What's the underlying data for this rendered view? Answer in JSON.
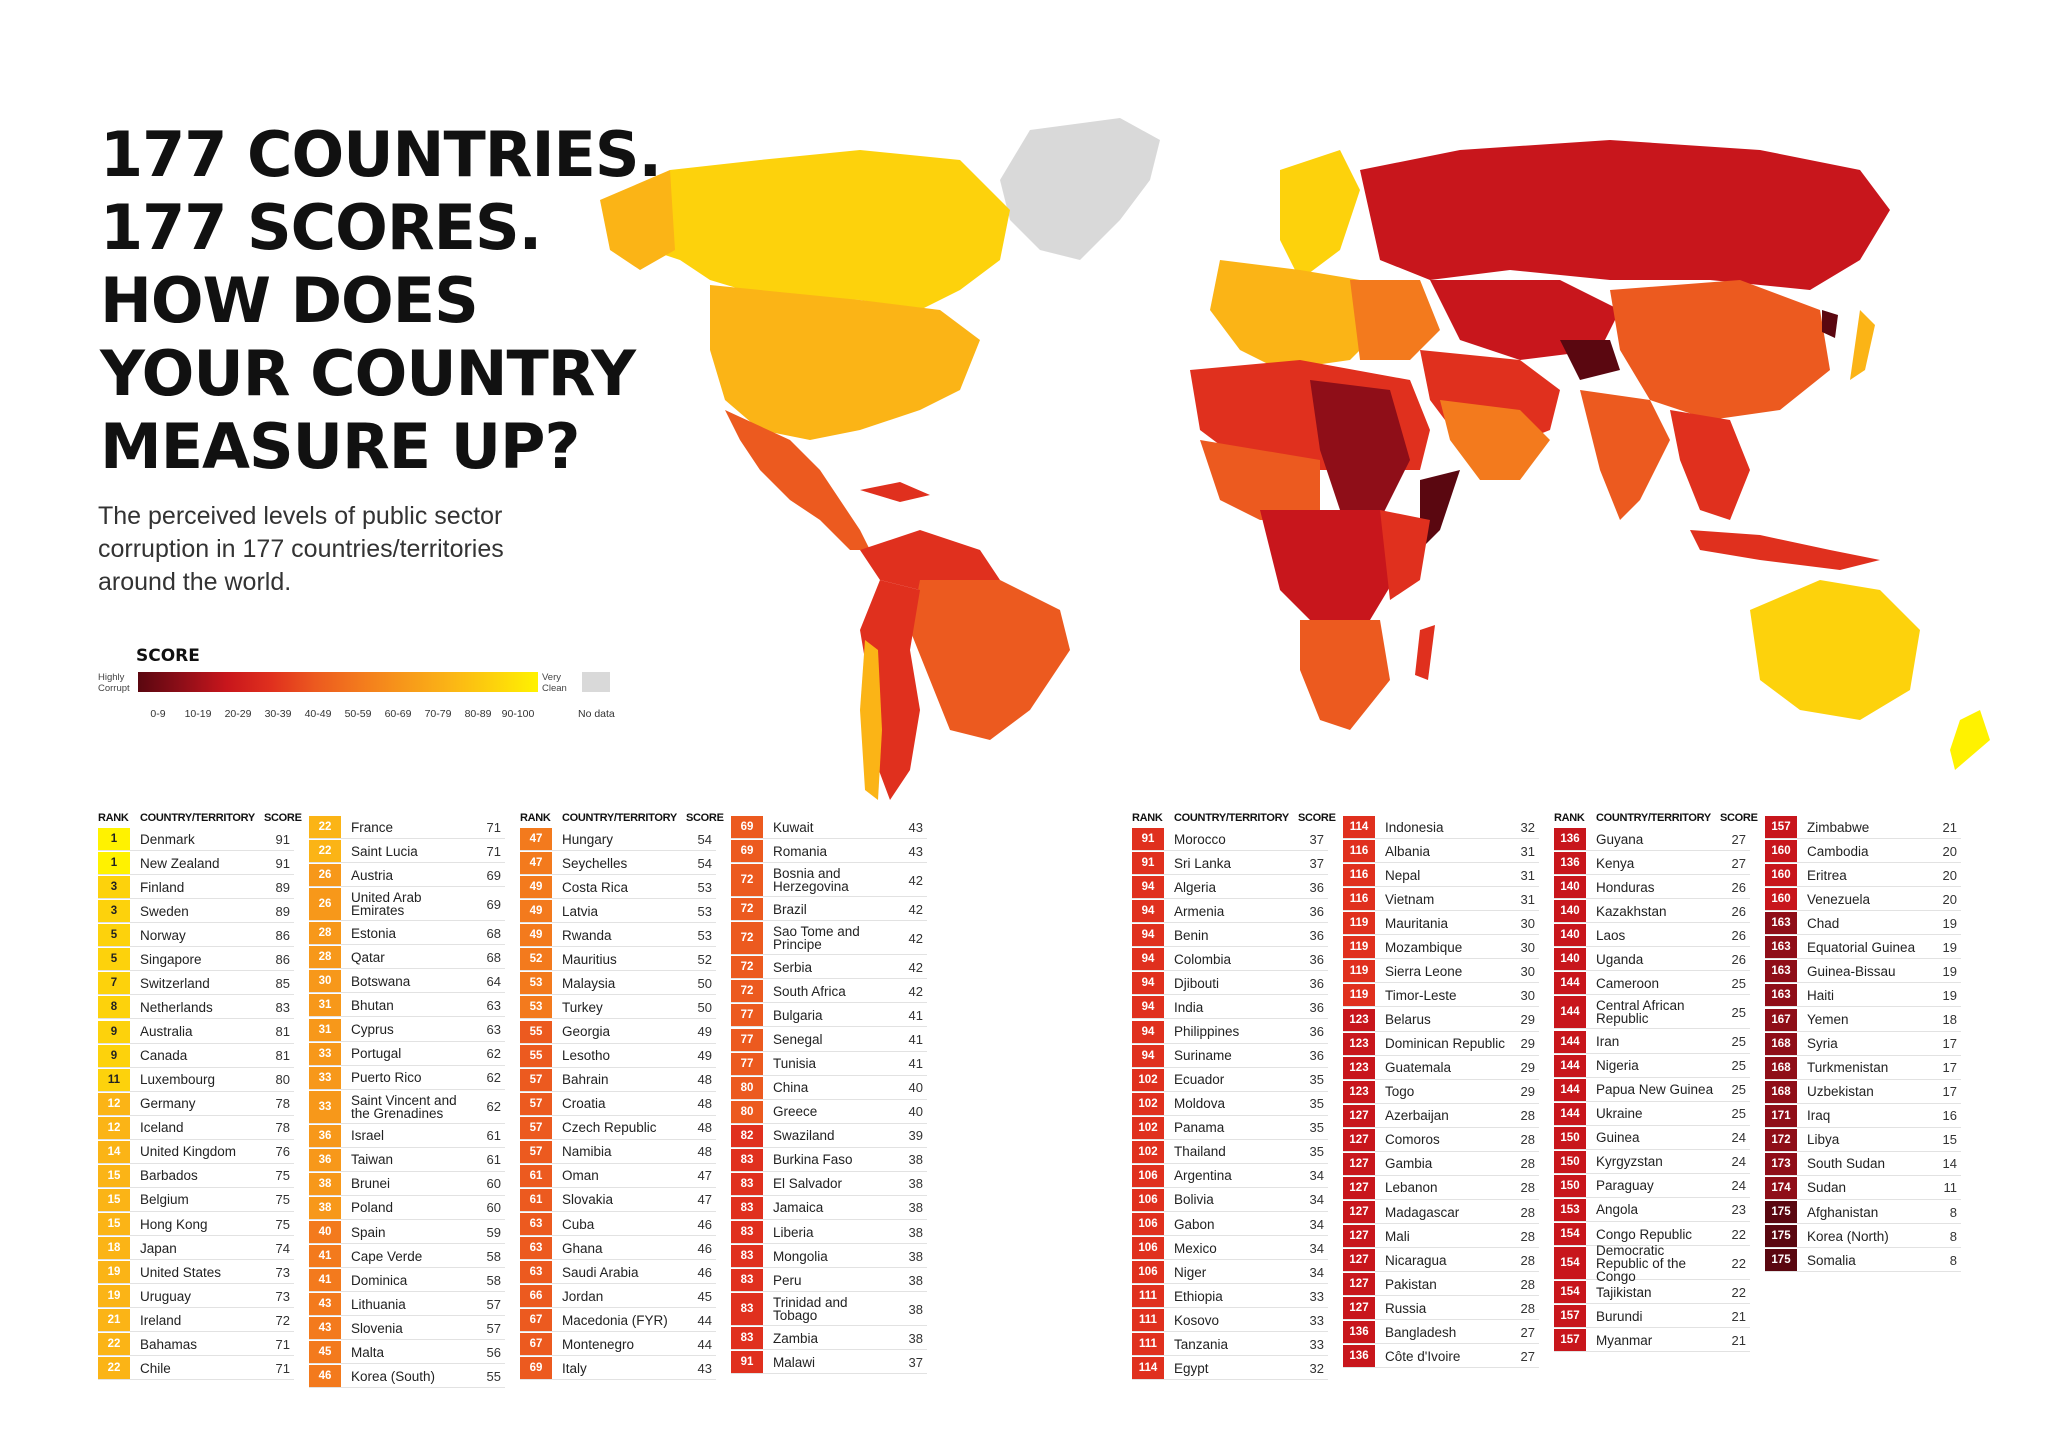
{
  "headline": [
    "177 COUNTRIES.",
    "177 SCORES.",
    "HOW DOES",
    "YOUR COUNTRY",
    "MEASURE UP?"
  ],
  "subtitle": "The perceived levels of public sector corruption in 177 countries/territories around the world.",
  "legend": {
    "title": "SCORE",
    "low_label": "Highly Corrupt",
    "high_label": "Very Clean",
    "ranges": [
      "0-9",
      "10-19",
      "20-29",
      "30-39",
      "40-49",
      "50-59",
      "60-69",
      "70-79",
      "80-89",
      "90-100"
    ],
    "no_data": "No data",
    "colors": [
      "#5a0710",
      "#8f0e18",
      "#c8161c",
      "#e0301e",
      "#ec5a1f",
      "#f37a1d",
      "#f7981a",
      "#fbb416",
      "#fdd20c",
      "#fff200"
    ],
    "no_data_color": "#d9d9d9"
  },
  "table_header": {
    "rank": "RANK",
    "country": "COUNTRY/TERRITORY",
    "score": "SCORE"
  },
  "columns": [
    [
      {
        "rank": "1",
        "country": "Denmark",
        "score": "91"
      },
      {
        "rank": "1",
        "country": "New Zealand",
        "score": "91"
      },
      {
        "rank": "3",
        "country": "Finland",
        "score": "89"
      },
      {
        "rank": "3",
        "country": "Sweden",
        "score": "89"
      },
      {
        "rank": "5",
        "country": "Norway",
        "score": "86"
      },
      {
        "rank": "5",
        "country": "Singapore",
        "score": "86"
      },
      {
        "rank": "7",
        "country": "Switzerland",
        "score": "85"
      },
      {
        "rank": "8",
        "country": "Netherlands",
        "score": "83"
      },
      {
        "rank": "9",
        "country": "Australia",
        "score": "81"
      },
      {
        "rank": "9",
        "country": "Canada",
        "score": "81"
      },
      {
        "rank": "11",
        "country": "Luxembourg",
        "score": "80"
      },
      {
        "rank": "12",
        "country": "Germany",
        "score": "78"
      },
      {
        "rank": "12",
        "country": "Iceland",
        "score": "78"
      },
      {
        "rank": "14",
        "country": "United Kingdom",
        "score": "76"
      },
      {
        "rank": "15",
        "country": "Barbados",
        "score": "75"
      },
      {
        "rank": "15",
        "country": "Belgium",
        "score": "75"
      },
      {
        "rank": "15",
        "country": "Hong Kong",
        "score": "75"
      },
      {
        "rank": "18",
        "country": "Japan",
        "score": "74"
      },
      {
        "rank": "19",
        "country": "United States",
        "score": "73"
      },
      {
        "rank": "19",
        "country": "Uruguay",
        "score": "73"
      },
      {
        "rank": "21",
        "country": "Ireland",
        "score": "72"
      },
      {
        "rank": "22",
        "country": "Bahamas",
        "score": "71"
      },
      {
        "rank": "22",
        "country": "Chile",
        "score": "71"
      }
    ],
    [
      {
        "rank": "22",
        "country": "France",
        "score": "71"
      },
      {
        "rank": "22",
        "country": "Saint Lucia",
        "score": "71"
      },
      {
        "rank": "26",
        "country": "Austria",
        "score": "69"
      },
      {
        "rank": "26",
        "country": "United Arab Emirates",
        "score": "69"
      },
      {
        "rank": "28",
        "country": "Estonia",
        "score": "68"
      },
      {
        "rank": "28",
        "country": "Qatar",
        "score": "68"
      },
      {
        "rank": "30",
        "country": "Botswana",
        "score": "64"
      },
      {
        "rank": "31",
        "country": "Bhutan",
        "score": "63"
      },
      {
        "rank": "31",
        "country": "Cyprus",
        "score": "63"
      },
      {
        "rank": "33",
        "country": "Portugal",
        "score": "62"
      },
      {
        "rank": "33",
        "country": "Puerto Rico",
        "score": "62"
      },
      {
        "rank": "33",
        "country": "Saint Vincent and the Grenadines",
        "score": "62"
      },
      {
        "rank": "36",
        "country": "Israel",
        "score": "61"
      },
      {
        "rank": "36",
        "country": "Taiwan",
        "score": "61"
      },
      {
        "rank": "38",
        "country": "Brunei",
        "score": "60"
      },
      {
        "rank": "38",
        "country": "Poland",
        "score": "60"
      },
      {
        "rank": "40",
        "country": "Spain",
        "score": "59"
      },
      {
        "rank": "41",
        "country": "Cape Verde",
        "score": "58"
      },
      {
        "rank": "41",
        "country": "Dominica",
        "score": "58"
      },
      {
        "rank": "43",
        "country": "Lithuania",
        "score": "57"
      },
      {
        "rank": "43",
        "country": "Slovenia",
        "score": "57"
      },
      {
        "rank": "45",
        "country": "Malta",
        "score": "56"
      },
      {
        "rank": "46",
        "country": "Korea (South)",
        "score": "55"
      }
    ],
    [
      {
        "rank": "47",
        "country": "Hungary",
        "score": "54"
      },
      {
        "rank": "47",
        "country": "Seychelles",
        "score": "54"
      },
      {
        "rank": "49",
        "country": "Costa Rica",
        "score": "53"
      },
      {
        "rank": "49",
        "country": "Latvia",
        "score": "53"
      },
      {
        "rank": "49",
        "country": "Rwanda",
        "score": "53"
      },
      {
        "rank": "52",
        "country": "Mauritius",
        "score": "52"
      },
      {
        "rank": "53",
        "country": "Malaysia",
        "score": "50"
      },
      {
        "rank": "53",
        "country": "Turkey",
        "score": "50"
      },
      {
        "rank": "55",
        "country": "Georgia",
        "score": "49"
      },
      {
        "rank": "55",
        "country": "Lesotho",
        "score": "49"
      },
      {
        "rank": "57",
        "country": "Bahrain",
        "score": "48"
      },
      {
        "rank": "57",
        "country": "Croatia",
        "score": "48"
      },
      {
        "rank": "57",
        "country": "Czech Republic",
        "score": "48"
      },
      {
        "rank": "57",
        "country": "Namibia",
        "score": "48"
      },
      {
        "rank": "61",
        "country": "Oman",
        "score": "47"
      },
      {
        "rank": "61",
        "country": "Slovakia",
        "score": "47"
      },
      {
        "rank": "63",
        "country": "Cuba",
        "score": "46"
      },
      {
        "rank": "63",
        "country": "Ghana",
        "score": "46"
      },
      {
        "rank": "63",
        "country": "Saudi Arabia",
        "score": "46"
      },
      {
        "rank": "66",
        "country": "Jordan",
        "score": "45"
      },
      {
        "rank": "67",
        "country": "Macedonia (FYR)",
        "score": "44"
      },
      {
        "rank": "67",
        "country": "Montenegro",
        "score": "44"
      },
      {
        "rank": "69",
        "country": "Italy",
        "score": "43"
      }
    ],
    [
      {
        "rank": "69",
        "country": "Kuwait",
        "score": "43"
      },
      {
        "rank": "69",
        "country": "Romania",
        "score": "43"
      },
      {
        "rank": "72",
        "country": "Bosnia and Herzegovina",
        "score": "42"
      },
      {
        "rank": "72",
        "country": "Brazil",
        "score": "42"
      },
      {
        "rank": "72",
        "country": "Sao Tome and Principe",
        "score": "42"
      },
      {
        "rank": "72",
        "country": "Serbia",
        "score": "42"
      },
      {
        "rank": "72",
        "country": "South Africa",
        "score": "42"
      },
      {
        "rank": "77",
        "country": "Bulgaria",
        "score": "41"
      },
      {
        "rank": "77",
        "country": "Senegal",
        "score": "41"
      },
      {
        "rank": "77",
        "country": "Tunisia",
        "score": "41"
      },
      {
        "rank": "80",
        "country": "China",
        "score": "40"
      },
      {
        "rank": "80",
        "country": "Greece",
        "score": "40"
      },
      {
        "rank": "82",
        "country": "Swaziland",
        "score": "39"
      },
      {
        "rank": "83",
        "country": "Burkina Faso",
        "score": "38"
      },
      {
        "rank": "83",
        "country": "El Salvador",
        "score": "38"
      },
      {
        "rank": "83",
        "country": "Jamaica",
        "score": "38"
      },
      {
        "rank": "83",
        "country": "Liberia",
        "score": "38"
      },
      {
        "rank": "83",
        "country": "Mongolia",
        "score": "38"
      },
      {
        "rank": "83",
        "country": "Peru",
        "score": "38"
      },
      {
        "rank": "83",
        "country": "Trinidad and Tobago",
        "score": "38"
      },
      {
        "rank": "83",
        "country": "Zambia",
        "score": "38"
      },
      {
        "rank": "91",
        "country": "Malawi",
        "score": "37"
      }
    ],
    [
      {
        "rank": "91",
        "country": "Morocco",
        "score": "37"
      },
      {
        "rank": "91",
        "country": "Sri Lanka",
        "score": "37"
      },
      {
        "rank": "94",
        "country": "Algeria",
        "score": "36"
      },
      {
        "rank": "94",
        "country": "Armenia",
        "score": "36"
      },
      {
        "rank": "94",
        "country": "Benin",
        "score": "36"
      },
      {
        "rank": "94",
        "country": "Colombia",
        "score": "36"
      },
      {
        "rank": "94",
        "country": "Djibouti",
        "score": "36"
      },
      {
        "rank": "94",
        "country": "India",
        "score": "36"
      },
      {
        "rank": "94",
        "country": "Philippines",
        "score": "36"
      },
      {
        "rank": "94",
        "country": "Suriname",
        "score": "36"
      },
      {
        "rank": "102",
        "country": "Ecuador",
        "score": "35"
      },
      {
        "rank": "102",
        "country": "Moldova",
        "score": "35"
      },
      {
        "rank": "102",
        "country": "Panama",
        "score": "35"
      },
      {
        "rank": "102",
        "country": "Thailand",
        "score": "35"
      },
      {
        "rank": "106",
        "country": "Argentina",
        "score": "34"
      },
      {
        "rank": "106",
        "country": "Bolivia",
        "score": "34"
      },
      {
        "rank": "106",
        "country": "Gabon",
        "score": "34"
      },
      {
        "rank": "106",
        "country": "Mexico",
        "score": "34"
      },
      {
        "rank": "106",
        "country": "Niger",
        "score": "34"
      },
      {
        "rank": "111",
        "country": "Ethiopia",
        "score": "33"
      },
      {
        "rank": "111",
        "country": "Kosovo",
        "score": "33"
      },
      {
        "rank": "111",
        "country": "Tanzania",
        "score": "33"
      },
      {
        "rank": "114",
        "country": "Egypt",
        "score": "32"
      }
    ],
    [
      {
        "rank": "114",
        "country": "Indonesia",
        "score": "32"
      },
      {
        "rank": "116",
        "country": "Albania",
        "score": "31"
      },
      {
        "rank": "116",
        "country": "Nepal",
        "score": "31"
      },
      {
        "rank": "116",
        "country": "Vietnam",
        "score": "31"
      },
      {
        "rank": "119",
        "country": "Mauritania",
        "score": "30"
      },
      {
        "rank": "119",
        "country": "Mozambique",
        "score": "30"
      },
      {
        "rank": "119",
        "country": "Sierra Leone",
        "score": "30"
      },
      {
        "rank": "119",
        "country": "Timor-Leste",
        "score": "30"
      },
      {
        "rank": "123",
        "country": "Belarus",
        "score": "29"
      },
      {
        "rank": "123",
        "country": "Dominican Republic",
        "score": "29"
      },
      {
        "rank": "123",
        "country": "Guatemala",
        "score": "29"
      },
      {
        "rank": "123",
        "country": "Togo",
        "score": "29"
      },
      {
        "rank": "127",
        "country": "Azerbaijan",
        "score": "28"
      },
      {
        "rank": "127",
        "country": "Comoros",
        "score": "28"
      },
      {
        "rank": "127",
        "country": "Gambia",
        "score": "28"
      },
      {
        "rank": "127",
        "country": "Lebanon",
        "score": "28"
      },
      {
        "rank": "127",
        "country": "Madagascar",
        "score": "28"
      },
      {
        "rank": "127",
        "country": "Mali",
        "score": "28"
      },
      {
        "rank": "127",
        "country": "Nicaragua",
        "score": "28"
      },
      {
        "rank": "127",
        "country": "Pakistan",
        "score": "28"
      },
      {
        "rank": "127",
        "country": "Russia",
        "score": "28"
      },
      {
        "rank": "136",
        "country": "Bangladesh",
        "score": "27"
      },
      {
        "rank": "136",
        "country": "Côte d'Ivoire",
        "score": "27"
      }
    ],
    [
      {
        "rank": "136",
        "country": "Guyana",
        "score": "27"
      },
      {
        "rank": "136",
        "country": "Kenya",
        "score": "27"
      },
      {
        "rank": "140",
        "country": "Honduras",
        "score": "26"
      },
      {
        "rank": "140",
        "country": "Kazakhstan",
        "score": "26"
      },
      {
        "rank": "140",
        "country": "Laos",
        "score": "26"
      },
      {
        "rank": "140",
        "country": "Uganda",
        "score": "26"
      },
      {
        "rank": "144",
        "country": "Cameroon",
        "score": "25"
      },
      {
        "rank": "144",
        "country": "Central African Republic",
        "score": "25"
      },
      {
        "rank": "144",
        "country": "Iran",
        "score": "25"
      },
      {
        "rank": "144",
        "country": "Nigeria",
        "score": "25"
      },
      {
        "rank": "144",
        "country": "Papua New Guinea",
        "score": "25"
      },
      {
        "rank": "144",
        "country": "Ukraine",
        "score": "25"
      },
      {
        "rank": "150",
        "country": "Guinea",
        "score": "24"
      },
      {
        "rank": "150",
        "country": "Kyrgyzstan",
        "score": "24"
      },
      {
        "rank": "150",
        "country": "Paraguay",
        "score": "24"
      },
      {
        "rank": "153",
        "country": "Angola",
        "score": "23"
      },
      {
        "rank": "154",
        "country": "Congo Republic",
        "score": "22"
      },
      {
        "rank": "154",
        "country": "Democratic Republic of the Congo",
        "score": "22"
      },
      {
        "rank": "154",
        "country": "Tajikistan",
        "score": "22"
      },
      {
        "rank": "157",
        "country": "Burundi",
        "score": "21"
      },
      {
        "rank": "157",
        "country": "Myanmar",
        "score": "21"
      }
    ],
    [
      {
        "rank": "157",
        "country": "Zimbabwe",
        "score": "21"
      },
      {
        "rank": "160",
        "country": "Cambodia",
        "score": "20"
      },
      {
        "rank": "160",
        "country": "Eritrea",
        "score": "20"
      },
      {
        "rank": "160",
        "country": "Venezuela",
        "score": "20"
      },
      {
        "rank": "163",
        "country": "Chad",
        "score": "19"
      },
      {
        "rank": "163",
        "country": "Equatorial Guinea",
        "score": "19"
      },
      {
        "rank": "163",
        "country": "Guinea-Bissau",
        "score": "19"
      },
      {
        "rank": "163",
        "country": "Haiti",
        "score": "19"
      },
      {
        "rank": "167",
        "country": "Yemen",
        "score": "18"
      },
      {
        "rank": "168",
        "country": "Syria",
        "score": "17"
      },
      {
        "rank": "168",
        "country": "Turkmenistan",
        "score": "17"
      },
      {
        "rank": "168",
        "country": "Uzbekistan",
        "score": "17"
      },
      {
        "rank": "171",
        "country": "Iraq",
        "score": "16"
      },
      {
        "rank": "172",
        "country": "Libya",
        "score": "15"
      },
      {
        "rank": "173",
        "country": "South Sudan",
        "score": "14"
      },
      {
        "rank": "174",
        "country": "Sudan",
        "score": "11"
      },
      {
        "rank": "175",
        "country": "Afghanistan",
        "score": "8"
      },
      {
        "rank": "175",
        "country": "Korea (North)",
        "score": "8"
      },
      {
        "rank": "175",
        "country": "Somalia",
        "score": "8"
      }
    ]
  ]
}
